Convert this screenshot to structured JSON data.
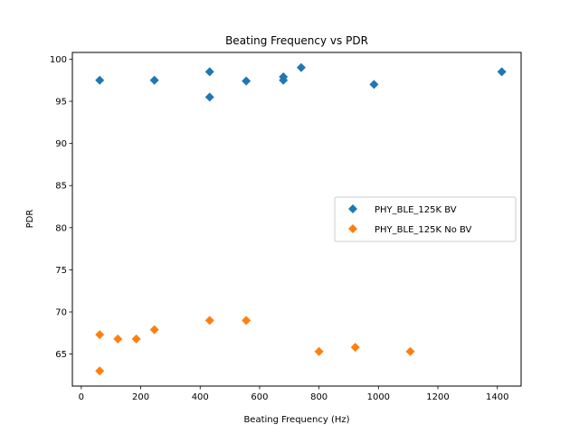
{
  "chart_data": {
    "type": "scatter",
    "title": "Beating Frequency vs PDR",
    "xlabel": "Beating Frequency (Hz)",
    "ylabel": "PDR",
    "xlim": [
      -30,
      1480
    ],
    "ylim": [
      61.2,
      100.8
    ],
    "xticks": [
      0,
      200,
      400,
      600,
      800,
      1000,
      1200,
      1400
    ],
    "yticks": [
      65,
      70,
      75,
      80,
      85,
      90,
      95,
      100
    ],
    "grid": false,
    "legend_position": "center-right",
    "marker": "diamond",
    "series": [
      {
        "name": "PHY_BLE_125K BV",
        "color": "#1f77b4",
        "points": [
          {
            "x": 62,
            "y": 97.5
          },
          {
            "x": 246,
            "y": 97.5
          },
          {
            "x": 432,
            "y": 98.5
          },
          {
            "x": 432,
            "y": 95.5
          },
          {
            "x": 555,
            "y": 97.4
          },
          {
            "x": 680,
            "y": 97.9
          },
          {
            "x": 680,
            "y": 97.5
          },
          {
            "x": 740,
            "y": 99.0
          },
          {
            "x": 985,
            "y": 97.0
          },
          {
            "x": 1415,
            "y": 98.5
          }
        ]
      },
      {
        "name": "PHY_BLE_125K No BV",
        "color": "#ff7f0e",
        "points": [
          {
            "x": 62,
            "y": 67.3
          },
          {
            "x": 62,
            "y": 63.0
          },
          {
            "x": 123,
            "y": 66.8
          },
          {
            "x": 185,
            "y": 66.8
          },
          {
            "x": 246,
            "y": 67.9
          },
          {
            "x": 432,
            "y": 69.0
          },
          {
            "x": 555,
            "y": 69.0
          },
          {
            "x": 800,
            "y": 65.3
          },
          {
            "x": 922,
            "y": 65.8
          },
          {
            "x": 1107,
            "y": 65.3
          }
        ]
      }
    ]
  }
}
